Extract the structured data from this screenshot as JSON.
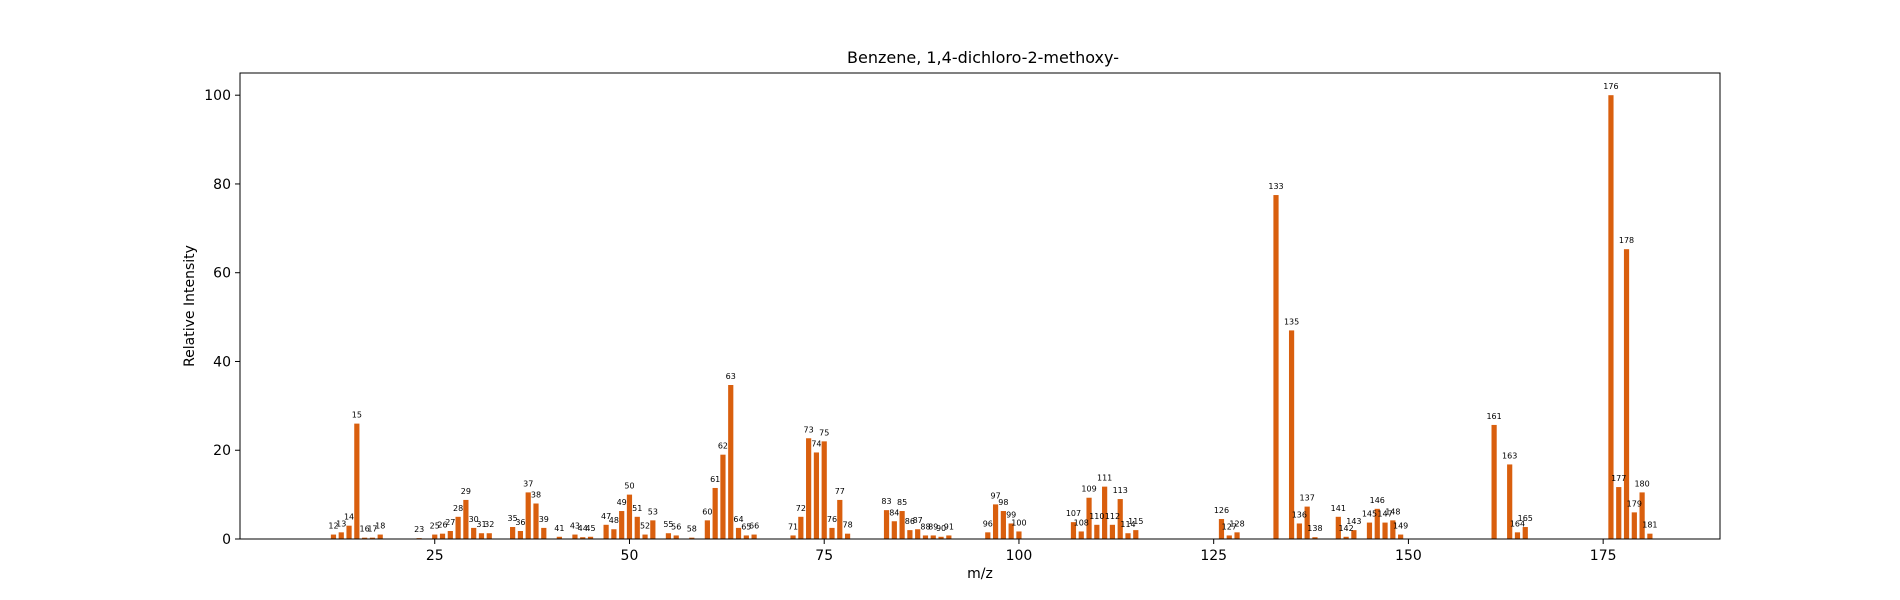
{
  "chart_data": {
    "type": "bar",
    "title": "Benzene, 1,4-dichloro-2-methoxy-",
    "xlabel": "m/z",
    "ylabel": "Relative Intensity",
    "xlim": [
      0,
      190
    ],
    "ylim": [
      0,
      105
    ],
    "xticks": [
      25,
      50,
      75,
      100,
      125,
      150,
      175
    ],
    "yticks": [
      0,
      20,
      40,
      60,
      80,
      100
    ],
    "grid": false,
    "bar_color": "#d95f0e",
    "peaks": [
      {
        "mz": 12,
        "intensity": 1.0
      },
      {
        "mz": 13,
        "intensity": 1.5
      },
      {
        "mz": 14,
        "intensity": 3.0
      },
      {
        "mz": 15,
        "intensity": 26.0
      },
      {
        "mz": 16,
        "intensity": 0.3
      },
      {
        "mz": 17,
        "intensity": 0.3
      },
      {
        "mz": 18,
        "intensity": 1.0
      },
      {
        "mz": 23,
        "intensity": 0.2
      },
      {
        "mz": 25,
        "intensity": 1.0
      },
      {
        "mz": 26,
        "intensity": 1.2
      },
      {
        "mz": 27,
        "intensity": 1.8
      },
      {
        "mz": 28,
        "intensity": 5.0
      },
      {
        "mz": 29,
        "intensity": 8.8
      },
      {
        "mz": 30,
        "intensity": 2.5
      },
      {
        "mz": 31,
        "intensity": 1.3
      },
      {
        "mz": 32,
        "intensity": 1.3
      },
      {
        "mz": 35,
        "intensity": 2.7
      },
      {
        "mz": 36,
        "intensity": 1.8
      },
      {
        "mz": 37,
        "intensity": 10.5
      },
      {
        "mz": 38,
        "intensity": 8.0
      },
      {
        "mz": 39,
        "intensity": 2.5
      },
      {
        "mz": 41,
        "intensity": 0.5
      },
      {
        "mz": 43,
        "intensity": 1.0
      },
      {
        "mz": 44,
        "intensity": 0.4
      },
      {
        "mz": 45,
        "intensity": 0.5
      },
      {
        "mz": 47,
        "intensity": 3.2
      },
      {
        "mz": 48,
        "intensity": 2.2
      },
      {
        "mz": 49,
        "intensity": 6.3
      },
      {
        "mz": 50,
        "intensity": 10.0
      },
      {
        "mz": 51,
        "intensity": 5.0
      },
      {
        "mz": 52,
        "intensity": 1.0
      },
      {
        "mz": 53,
        "intensity": 4.2
      },
      {
        "mz": 55,
        "intensity": 1.3
      },
      {
        "mz": 56,
        "intensity": 0.8
      },
      {
        "mz": 58,
        "intensity": 0.3
      },
      {
        "mz": 60,
        "intensity": 4.2
      },
      {
        "mz": 61,
        "intensity": 11.5
      },
      {
        "mz": 62,
        "intensity": 19.0
      },
      {
        "mz": 63,
        "intensity": 34.7
      },
      {
        "mz": 64,
        "intensity": 2.5
      },
      {
        "mz": 65,
        "intensity": 0.8
      },
      {
        "mz": 66,
        "intensity": 1.0
      },
      {
        "mz": 71,
        "intensity": 0.8
      },
      {
        "mz": 72,
        "intensity": 5.0
      },
      {
        "mz": 73,
        "intensity": 22.7
      },
      {
        "mz": 74,
        "intensity": 19.5
      },
      {
        "mz": 75,
        "intensity": 22.0
      },
      {
        "mz": 76,
        "intensity": 2.5
      },
      {
        "mz": 77,
        "intensity": 8.8
      },
      {
        "mz": 78,
        "intensity": 1.2
      },
      {
        "mz": 83,
        "intensity": 6.5
      },
      {
        "mz": 84,
        "intensity": 4.0
      },
      {
        "mz": 85,
        "intensity": 6.3
      },
      {
        "mz": 86,
        "intensity": 2.0
      },
      {
        "mz": 87,
        "intensity": 2.2
      },
      {
        "mz": 88,
        "intensity": 0.8
      },
      {
        "mz": 89,
        "intensity": 0.8
      },
      {
        "mz": 90,
        "intensity": 0.5
      },
      {
        "mz": 91,
        "intensity": 0.8
      },
      {
        "mz": 96,
        "intensity": 1.5
      },
      {
        "mz": 97,
        "intensity": 7.8
      },
      {
        "mz": 98,
        "intensity": 6.3
      },
      {
        "mz": 99,
        "intensity": 3.5
      },
      {
        "mz": 100,
        "intensity": 1.7
      },
      {
        "mz": 107,
        "intensity": 3.8
      },
      {
        "mz": 108,
        "intensity": 1.7
      },
      {
        "mz": 109,
        "intensity": 9.3
      },
      {
        "mz": 110,
        "intensity": 3.2
      },
      {
        "mz": 111,
        "intensity": 11.8
      },
      {
        "mz": 112,
        "intensity": 3.2
      },
      {
        "mz": 113,
        "intensity": 9.0
      },
      {
        "mz": 114,
        "intensity": 1.3
      },
      {
        "mz": 115,
        "intensity": 2.0
      },
      {
        "mz": 126,
        "intensity": 4.5
      },
      {
        "mz": 127,
        "intensity": 0.8
      },
      {
        "mz": 128,
        "intensity": 1.5
      },
      {
        "mz": 133,
        "intensity": 77.5
      },
      {
        "mz": 135,
        "intensity": 47.0
      },
      {
        "mz": 136,
        "intensity": 3.5
      },
      {
        "mz": 137,
        "intensity": 7.3
      },
      {
        "mz": 138,
        "intensity": 0.4
      },
      {
        "mz": 141,
        "intensity": 5.0
      },
      {
        "mz": 142,
        "intensity": 0.5
      },
      {
        "mz": 143,
        "intensity": 2.0
      },
      {
        "mz": 145,
        "intensity": 3.7
      },
      {
        "mz": 146,
        "intensity": 6.8
      },
      {
        "mz": 147,
        "intensity": 3.7
      },
      {
        "mz": 148,
        "intensity": 4.2
      },
      {
        "mz": 149,
        "intensity": 1.0
      },
      {
        "mz": 161,
        "intensity": 25.7
      },
      {
        "mz": 163,
        "intensity": 16.8
      },
      {
        "mz": 164,
        "intensity": 1.5
      },
      {
        "mz": 165,
        "intensity": 2.7
      },
      {
        "mz": 176,
        "intensity": 100.0
      },
      {
        "mz": 177,
        "intensity": 11.7
      },
      {
        "mz": 178,
        "intensity": 65.3
      },
      {
        "mz": 179,
        "intensity": 6.0
      },
      {
        "mz": 180,
        "intensity": 10.5
      },
      {
        "mz": 181,
        "intensity": 1.2
      }
    ]
  }
}
